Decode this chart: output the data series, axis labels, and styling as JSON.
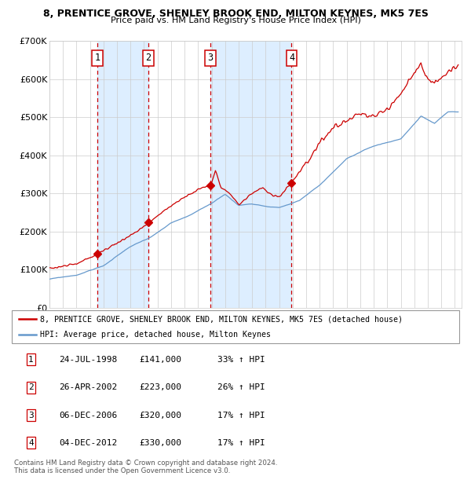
{
  "title_line1": "8, PRENTICE GROVE, SHENLEY BROOK END, MILTON KEYNES, MK5 7ES",
  "title_line2": "Price paid vs. HM Land Registry's House Price Index (HPI)",
  "legend_line1": "8, PRENTICE GROVE, SHENLEY BROOK END, MILTON KEYNES, MK5 7ES (detached house)",
  "legend_line2": "HPI: Average price, detached house, Milton Keynes",
  "footer_line1": "Contains HM Land Registry data © Crown copyright and database right 2024.",
  "footer_line2": "This data is licensed under the Open Government Licence v3.0.",
  "transactions": [
    {
      "num": 1,
      "date": "24-JUL-1998",
      "price": 141000,
      "year": 1998.56,
      "pct": "33% ↑ HPI"
    },
    {
      "num": 2,
      "date": "26-APR-2002",
      "price": 223000,
      "year": 2002.32,
      "pct": "26% ↑ HPI"
    },
    {
      "num": 3,
      "date": "06-DEC-2006",
      "price": 320000,
      "year": 2006.92,
      "pct": "17% ↑ HPI"
    },
    {
      "num": 4,
      "date": "04-DEC-2012",
      "price": 330000,
      "year": 2012.92,
      "pct": "17% ↑ HPI"
    }
  ],
  "hpi_color": "#6699cc",
  "price_color": "#cc0000",
  "marker_color": "#cc0000",
  "bg_shade_color": "#ddeeff",
  "vline_color": "#cc0000",
  "grid_color": "#cccccc",
  "box_edge_color": "#cc0000",
  "ylim": [
    0,
    700000
  ],
  "xlim_start": 1995.0,
  "xlim_end": 2025.5,
  "yticks": [
    0,
    100000,
    200000,
    300000,
    400000,
    500000,
    600000,
    700000
  ],
  "ytick_labels": [
    "£0",
    "£100K",
    "£200K",
    "£300K",
    "£400K",
    "£500K",
    "£600K",
    "£700K"
  ]
}
